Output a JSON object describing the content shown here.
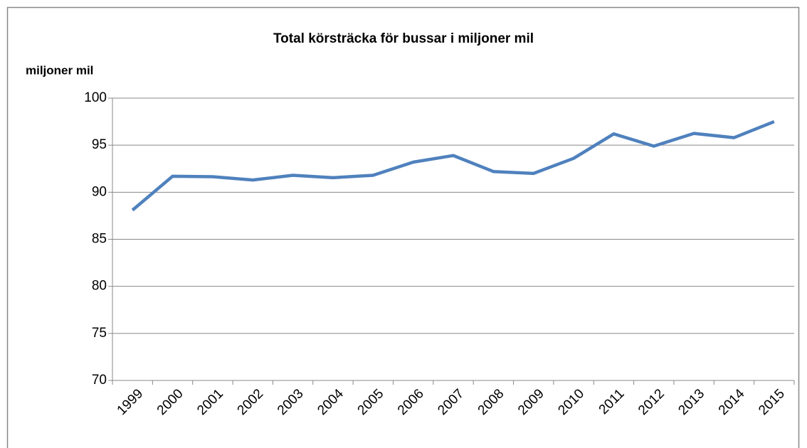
{
  "chart_data": {
    "type": "line",
    "title": "Total körsträcka för bussar i miljoner mil",
    "ylabel": "miljoner mil",
    "categories": [
      "1999",
      "2000",
      "2001",
      "2002",
      "2003",
      "2004",
      "2005",
      "2006",
      "2007",
      "2008",
      "2009",
      "2010",
      "2011",
      "2012",
      "2013",
      "2014",
      "2015"
    ],
    "series": [
      {
        "name": "Total körsträcka",
        "color": "#4f81bd",
        "values": [
          88.1,
          91.7,
          91.65,
          91.3,
          91.8,
          91.55,
          91.8,
          93.2,
          93.9,
          92.2,
          92.0,
          93.6,
          96.2,
          94.9,
          96.25,
          95.8,
          97.5
        ]
      }
    ],
    "ylim": [
      70,
      100
    ],
    "yticks": [
      70,
      75,
      80,
      85,
      90,
      95,
      100
    ],
    "grid": true
  }
}
